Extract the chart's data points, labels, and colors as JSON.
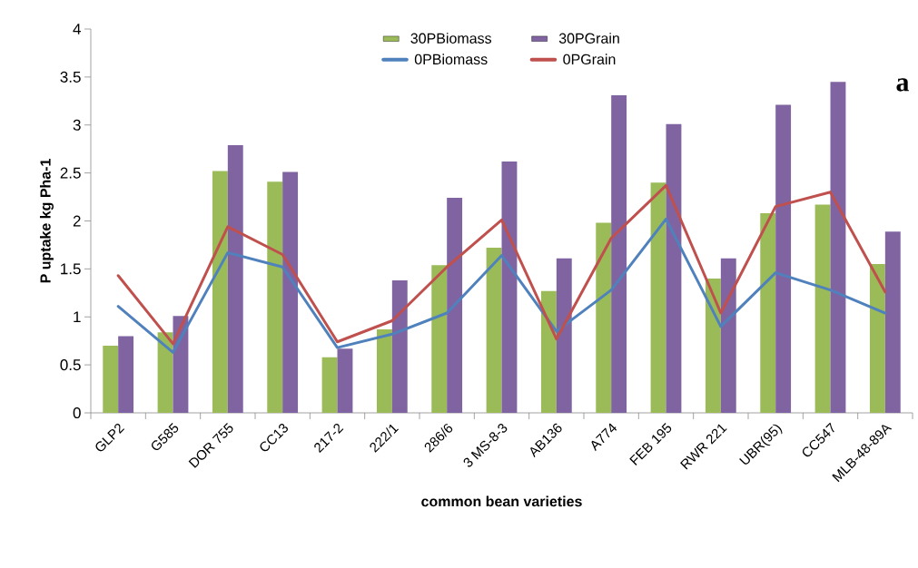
{
  "chart_data": {
    "type": "bar",
    "xlabel": "common bean varieties",
    "ylabel": "P uptake kg Pha-1",
    "categories": [
      "GLP2",
      "G585",
      "DOR 755",
      "CC13",
      "217-2",
      "222/1",
      "286/6",
      "3 MS-8-3",
      "AB136",
      "A774",
      "FEB 195",
      "RWR 221",
      "UBR(95)",
      "CC547",
      "MLB-48-89A"
    ],
    "series": [
      {
        "name": "30PBiomass",
        "color": "#9bbb59",
        "values": [
          0.7,
          0.84,
          2.52,
          2.41,
          0.58,
          0.87,
          1.54,
          1.72,
          1.27,
          1.98,
          2.4,
          1.4,
          2.08,
          2.17,
          1.55
        ]
      },
      {
        "name": "30PGrain",
        "color": "#8064a2",
        "values": [
          0.8,
          1.01,
          2.79,
          2.51,
          0.67,
          1.38,
          2.24,
          2.62,
          1.61,
          3.31,
          3.01,
          1.61,
          3.21,
          3.45,
          1.89
        ]
      },
      {
        "name": "0PBiomass",
        "type": "line",
        "color": "#4f81bd",
        "values": [
          1.11,
          0.63,
          1.67,
          1.52,
          0.68,
          0.82,
          1.04,
          1.64,
          0.85,
          1.28,
          2.02,
          0.9,
          1.46,
          1.28,
          1.04
        ]
      },
      {
        "name": "0PGrain",
        "type": "line",
        "color": "#c0504d",
        "values": [
          1.43,
          0.72,
          1.94,
          1.65,
          0.74,
          0.96,
          1.52,
          2.01,
          0.77,
          1.82,
          2.37,
          1.04,
          2.15,
          2.3,
          1.26
        ]
      }
    ],
    "ylim": [
      0,
      4
    ],
    "yticks": [
      0,
      0.5,
      1,
      1.5,
      2,
      2.5,
      3,
      3.5,
      4
    ],
    "legend": "top",
    "grid": false,
    "marker": "none",
    "line_style": "solid",
    "annotations": [
      "a"
    ]
  }
}
